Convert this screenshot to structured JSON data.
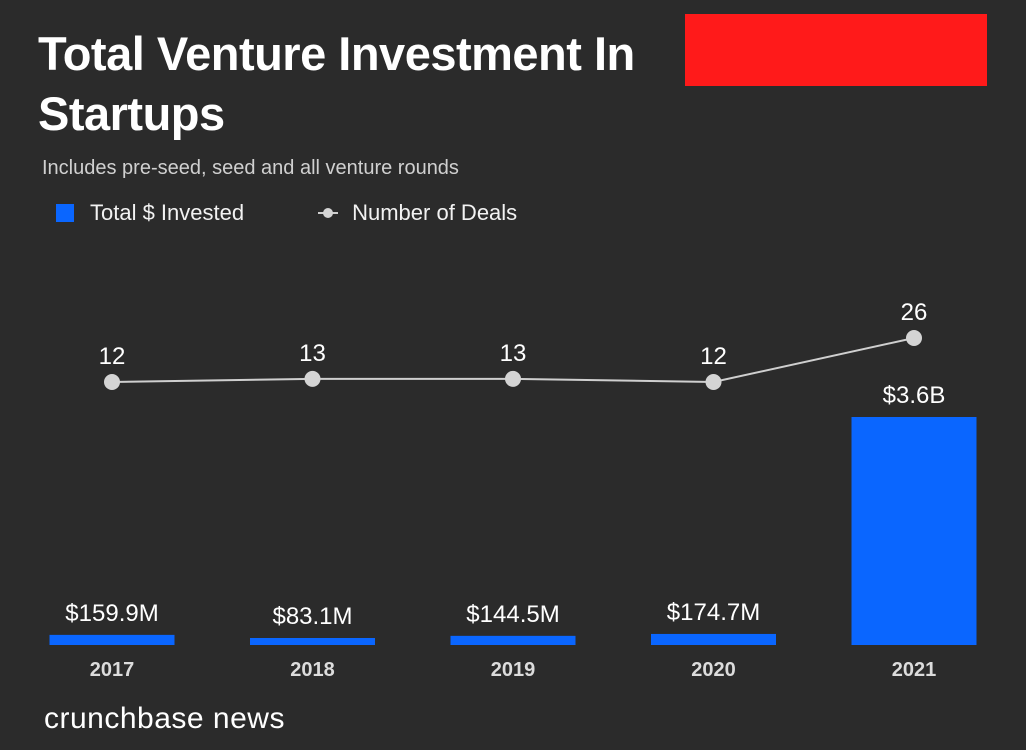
{
  "header": {
    "title": "Total Venture Investment In Startups",
    "subtitle": "Includes pre-seed, seed and all venture rounds"
  },
  "legend": {
    "bar_label": "Total $ Invested",
    "line_label": "Number of Deals"
  },
  "footer": {
    "brand": "crunchbase news"
  },
  "colors": {
    "background": "#2b2b2b",
    "bar": "#0a66ff",
    "line": "#cfcfcf",
    "redaction": "#ff1a1a"
  },
  "chart_data": {
    "type": "bar",
    "title": "Total Venture Investment In Startups",
    "subtitle": "Includes pre-seed, seed and all venture rounds",
    "categories": [
      "2017",
      "2018",
      "2019",
      "2020",
      "2021"
    ],
    "series": [
      {
        "name": "Total $ Invested",
        "type": "bar",
        "values": [
          159.9,
          83.1,
          144.5,
          174.7,
          3600
        ],
        "unit": "$M",
        "labels": [
          "$159.9M",
          "$83.1M",
          "$144.5M",
          "$174.7M",
          "$3.6B"
        ]
      },
      {
        "name": "Number of Deals",
        "type": "line",
        "values": [
          12,
          13,
          13,
          12,
          26
        ],
        "labels": [
          "12",
          "13",
          "13",
          "12",
          "26"
        ]
      }
    ],
    "legend_position": "top-left",
    "grid": false
  }
}
